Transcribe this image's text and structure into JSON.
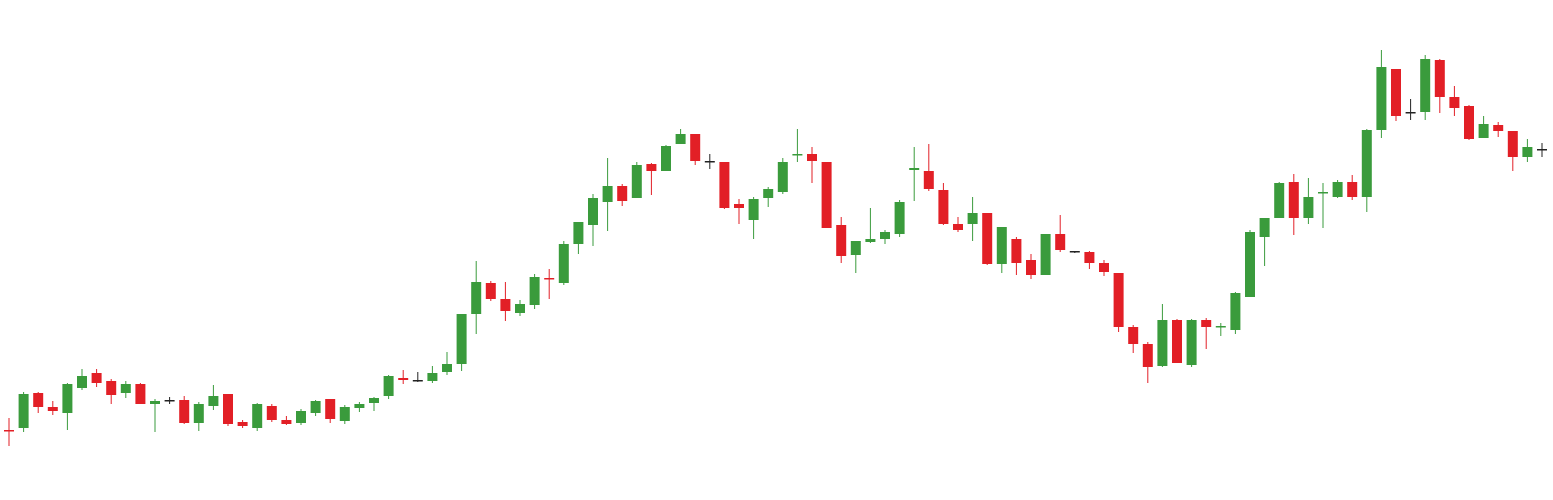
{
  "chart_data": {
    "type": "candlestick",
    "title": "",
    "xlabel": "",
    "ylabel": "",
    "grid": false,
    "legend": "none",
    "ylim": [
      0,
      500
    ],
    "colors": {
      "up": "#3a9b3c",
      "down": "#e21f26",
      "doji": "#222222"
    },
    "candles": [
      {
        "o": 70,
        "h": 82,
        "l": 54,
        "c": 70,
        "dir": "down"
      },
      {
        "o": 72,
        "h": 108,
        "l": 68,
        "c": 106,
        "dir": "up"
      },
      {
        "o": 107,
        "h": 108,
        "l": 87,
        "c": 93,
        "dir": "down"
      },
      {
        "o": 93,
        "h": 99,
        "l": 85,
        "c": 89,
        "dir": "down"
      },
      {
        "o": 87,
        "h": 117,
        "l": 70,
        "c": 116,
        "dir": "up"
      },
      {
        "o": 112,
        "h": 131,
        "l": 110,
        "c": 124,
        "dir": "up"
      },
      {
        "o": 127,
        "h": 131,
        "l": 113,
        "c": 117,
        "dir": "down"
      },
      {
        "o": 119,
        "h": 121,
        "l": 96,
        "c": 105,
        "dir": "down"
      },
      {
        "o": 107,
        "h": 119,
        "l": 102,
        "c": 116,
        "dir": "up"
      },
      {
        "o": 116,
        "h": 117,
        "l": 96,
        "c": 96,
        "dir": "down"
      },
      {
        "o": 96,
        "h": 101,
        "l": 68,
        "c": 99,
        "dir": "up"
      },
      {
        "o": 99,
        "h": 103,
        "l": 96,
        "c": 100,
        "dir": "doji"
      },
      {
        "o": 100,
        "h": 104,
        "l": 76,
        "c": 77,
        "dir": "down"
      },
      {
        "o": 77,
        "h": 98,
        "l": 69,
        "c": 96,
        "dir": "up"
      },
      {
        "o": 94,
        "h": 115,
        "l": 90,
        "c": 104,
        "dir": "up"
      },
      {
        "o": 106,
        "h": 106,
        "l": 74,
        "c": 76,
        "dir": "down"
      },
      {
        "o": 78,
        "h": 80,
        "l": 72,
        "c": 74,
        "dir": "down"
      },
      {
        "o": 72,
        "h": 97,
        "l": 69,
        "c": 96,
        "dir": "up"
      },
      {
        "o": 94,
        "h": 96,
        "l": 78,
        "c": 80,
        "dir": "down"
      },
      {
        "o": 80,
        "h": 84,
        "l": 75,
        "c": 76,
        "dir": "down"
      },
      {
        "o": 77,
        "h": 91,
        "l": 75,
        "c": 89,
        "dir": "up"
      },
      {
        "o": 87,
        "h": 100,
        "l": 84,
        "c": 99,
        "dir": "up"
      },
      {
        "o": 101,
        "h": 101,
        "l": 77,
        "c": 81,
        "dir": "down"
      },
      {
        "o": 79,
        "h": 95,
        "l": 76,
        "c": 93,
        "dir": "up"
      },
      {
        "o": 92,
        "h": 98,
        "l": 88,
        "c": 96,
        "dir": "up"
      },
      {
        "o": 97,
        "h": 103,
        "l": 89,
        "c": 102,
        "dir": "up"
      },
      {
        "o": 104,
        "h": 125,
        "l": 101,
        "c": 124,
        "dir": "up"
      },
      {
        "o": 122,
        "h": 130,
        "l": 116,
        "c": 120,
        "dir": "down"
      },
      {
        "o": 120,
        "h": 128,
        "l": 118,
        "c": 119,
        "dir": "doji"
      },
      {
        "o": 119,
        "h": 134,
        "l": 117,
        "c": 127,
        "dir": "up"
      },
      {
        "o": 128,
        "h": 148,
        "l": 125,
        "c": 136,
        "dir": "up"
      },
      {
        "o": 136,
        "h": 186,
        "l": 129,
        "c": 186,
        "dir": "up"
      },
      {
        "o": 186,
        "h": 239,
        "l": 166,
        "c": 218,
        "dir": "up"
      },
      {
        "o": 217,
        "h": 219,
        "l": 199,
        "c": 201,
        "dir": "down"
      },
      {
        "o": 201,
        "h": 218,
        "l": 179,
        "c": 189,
        "dir": "down"
      },
      {
        "o": 187,
        "h": 200,
        "l": 184,
        "c": 196,
        "dir": "up"
      },
      {
        "o": 195,
        "h": 226,
        "l": 191,
        "c": 223,
        "dir": "up"
      },
      {
        "o": 222,
        "h": 231,
        "l": 201,
        "c": 222,
        "dir": "down"
      },
      {
        "o": 217,
        "h": 259,
        "l": 215,
        "c": 256,
        "dir": "up"
      },
      {
        "o": 256,
        "h": 278,
        "l": 246,
        "c": 278,
        "dir": "up"
      },
      {
        "o": 275,
        "h": 306,
        "l": 254,
        "c": 302,
        "dir": "up"
      },
      {
        "o": 298,
        "h": 342,
        "l": 269,
        "c": 314,
        "dir": "up"
      },
      {
        "o": 314,
        "h": 316,
        "l": 294,
        "c": 299,
        "dir": "down"
      },
      {
        "o": 302,
        "h": 338,
        "l": 302,
        "c": 335,
        "dir": "up"
      },
      {
        "o": 336,
        "h": 337,
        "l": 305,
        "c": 329,
        "dir": "down"
      },
      {
        "o": 329,
        "h": 355,
        "l": 329,
        "c": 354,
        "dir": "up"
      },
      {
        "o": 356,
        "h": 371,
        "l": 356,
        "c": 366,
        "dir": "up"
      },
      {
        "o": 366,
        "h": 366,
        "l": 335,
        "c": 339,
        "dir": "down"
      },
      {
        "o": 339,
        "h": 346,
        "l": 331,
        "c": 339,
        "dir": "doji"
      },
      {
        "o": 338,
        "h": 338,
        "l": 291,
        "c": 292,
        "dir": "down"
      },
      {
        "o": 292,
        "h": 301,
        "l": 276,
        "c": 296,
        "dir": "down"
      },
      {
        "o": 280,
        "h": 303,
        "l": 261,
        "c": 301,
        "dir": "up"
      },
      {
        "o": 302,
        "h": 313,
        "l": 293,
        "c": 311,
        "dir": "up"
      },
      {
        "o": 308,
        "h": 342,
        "l": 306,
        "c": 338,
        "dir": "up"
      },
      {
        "o": 346,
        "h": 371,
        "l": 338,
        "c": 346,
        "dir": "up"
      },
      {
        "o": 346,
        "h": 353,
        "l": 317,
        "c": 339,
        "dir": "down"
      },
      {
        "o": 338,
        "h": 338,
        "l": 272,
        "c": 272,
        "dir": "down"
      },
      {
        "o": 275,
        "h": 283,
        "l": 237,
        "c": 244,
        "dir": "down"
      },
      {
        "o": 245,
        "h": 258,
        "l": 227,
        "c": 259,
        "dir": "up"
      },
      {
        "o": 258,
        "h": 292,
        "l": 257,
        "c": 261,
        "dir": "up"
      },
      {
        "o": 261,
        "h": 270,
        "l": 256,
        "c": 268,
        "dir": "up"
      },
      {
        "o": 266,
        "h": 300,
        "l": 263,
        "c": 298,
        "dir": "up"
      },
      {
        "o": 332,
        "h": 353,
        "l": 299,
        "c": 330,
        "dir": "up"
      },
      {
        "o": 329,
        "h": 356,
        "l": 309,
        "c": 311,
        "dir": "down"
      },
      {
        "o": 310,
        "h": 317,
        "l": 275,
        "c": 276,
        "dir": "down"
      },
      {
        "o": 276,
        "h": 283,
        "l": 268,
        "c": 270,
        "dir": "down"
      },
      {
        "o": 276,
        "h": 303,
        "l": 259,
        "c": 287,
        "dir": "up"
      },
      {
        "o": 287,
        "h": 286,
        "l": 235,
        "c": 236,
        "dir": "down"
      },
      {
        "o": 236,
        "h": 273,
        "l": 227,
        "c": 273,
        "dir": "up"
      },
      {
        "o": 261,
        "h": 263,
        "l": 225,
        "c": 237,
        "dir": "down"
      },
      {
        "o": 240,
        "h": 246,
        "l": 221,
        "c": 225,
        "dir": "down"
      },
      {
        "o": 225,
        "h": 266,
        "l": 225,
        "c": 266,
        "dir": "up"
      },
      {
        "o": 266,
        "h": 285,
        "l": 248,
        "c": 250,
        "dir": "down"
      },
      {
        "o": 249,
        "h": 249,
        "l": 247,
        "c": 248,
        "dir": "doji"
      },
      {
        "o": 248,
        "h": 249,
        "l": 231,
        "c": 237,
        "dir": "down"
      },
      {
        "o": 237,
        "h": 240,
        "l": 224,
        "c": 228,
        "dir": "down"
      },
      {
        "o": 227,
        "h": 227,
        "l": 168,
        "c": 173,
        "dir": "down"
      },
      {
        "o": 173,
        "h": 175,
        "l": 147,
        "c": 156,
        "dir": "down"
      },
      {
        "o": 156,
        "h": 158,
        "l": 117,
        "c": 133,
        "dir": "down"
      },
      {
        "o": 134,
        "h": 196,
        "l": 133,
        "c": 180,
        "dir": "up"
      },
      {
        "o": 180,
        "h": 181,
        "l": 137,
        "c": 137,
        "dir": "down"
      },
      {
        "o": 135,
        "h": 181,
        "l": 133,
        "c": 180,
        "dir": "up"
      },
      {
        "o": 180,
        "h": 182,
        "l": 151,
        "c": 173,
        "dir": "down"
      },
      {
        "o": 173,
        "h": 177,
        "l": 164,
        "c": 174,
        "dir": "up"
      },
      {
        "o": 170,
        "h": 208,
        "l": 166,
        "c": 207,
        "dir": "up"
      },
      {
        "o": 203,
        "h": 270,
        "l": 203,
        "c": 268,
        "dir": "up"
      },
      {
        "o": 263,
        "h": 282,
        "l": 234,
        "c": 282,
        "dir": "up"
      },
      {
        "o": 282,
        "h": 318,
        "l": 282,
        "c": 317,
        "dir": "up"
      },
      {
        "o": 318,
        "h": 326,
        "l": 265,
        "c": 282,
        "dir": "down"
      },
      {
        "o": 282,
        "h": 322,
        "l": 276,
        "c": 303,
        "dir": "up"
      },
      {
        "o": 308,
        "h": 317,
        "l": 272,
        "c": 308,
        "dir": "up"
      },
      {
        "o": 303,
        "h": 320,
        "l": 302,
        "c": 318,
        "dir": "up"
      },
      {
        "o": 318,
        "h": 325,
        "l": 300,
        "c": 303,
        "dir": "down"
      },
      {
        "o": 303,
        "h": 371,
        "l": 288,
        "c": 370,
        "dir": "up"
      },
      {
        "o": 370,
        "h": 450,
        "l": 362,
        "c": 433,
        "dir": "up"
      },
      {
        "o": 431,
        "h": 431,
        "l": 379,
        "c": 384,
        "dir": "down"
      },
      {
        "o": 388,
        "h": 401,
        "l": 380,
        "c": 388,
        "dir": "doji"
      },
      {
        "o": 388,
        "h": 445,
        "l": 380,
        "c": 441,
        "dir": "up"
      },
      {
        "o": 440,
        "h": 441,
        "l": 387,
        "c": 403,
        "dir": "down"
      },
      {
        "o": 403,
        "h": 414,
        "l": 384,
        "c": 392,
        "dir": "down"
      },
      {
        "o": 394,
        "h": 395,
        "l": 360,
        "c": 361,
        "dir": "down"
      },
      {
        "o": 362,
        "h": 384,
        "l": 362,
        "c": 376,
        "dir": "up"
      },
      {
        "o": 375,
        "h": 378,
        "l": 363,
        "c": 369,
        "dir": "down"
      },
      {
        "o": 369,
        "h": 369,
        "l": 329,
        "c": 343,
        "dir": "down"
      },
      {
        "o": 343,
        "h": 361,
        "l": 338,
        "c": 353,
        "dir": "up"
      },
      {
        "o": 350,
        "h": 357,
        "l": 343,
        "c": 351,
        "dir": "doji"
      }
    ]
  }
}
